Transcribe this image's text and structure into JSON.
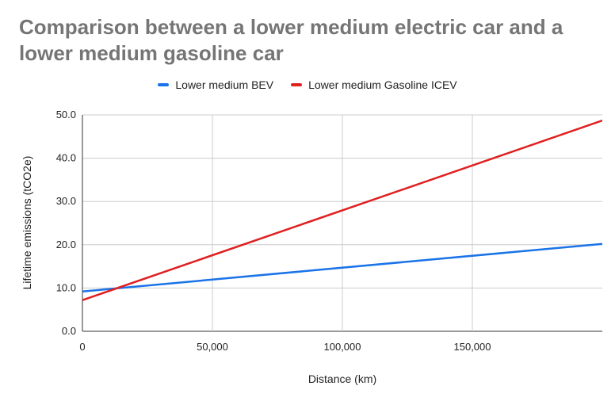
{
  "chart_data": {
    "type": "line",
    "title": "Comparison between a lower medium electric car and a lower medium gasoline car",
    "xlabel": "Distance (km)",
    "ylabel": "Lifetime emissions (tCO2e)",
    "xlim": [
      0,
      200000
    ],
    "ylim": [
      0,
      50
    ],
    "x_ticks": [
      0,
      50000,
      100000,
      150000
    ],
    "x_tick_labels": [
      "0",
      "50,000",
      "100,000",
      "150,000"
    ],
    "y_ticks": [
      0,
      10,
      20,
      30,
      40,
      50
    ],
    "y_tick_labels": [
      "0.0",
      "10.0",
      "20.0",
      "30.0",
      "40.0",
      "50.0"
    ],
    "grid": true,
    "legend_position": "top",
    "series": [
      {
        "name": "Lower medium BEV",
        "color": "#1a73e8",
        "x": [
          0,
          200000
        ],
        "values": [
          9.2,
          20.2
        ]
      },
      {
        "name": "Lower medium Gasoline ICEV",
        "color": "#e02020",
        "x": [
          0,
          200000
        ],
        "values": [
          7.2,
          48.7
        ]
      }
    ]
  }
}
